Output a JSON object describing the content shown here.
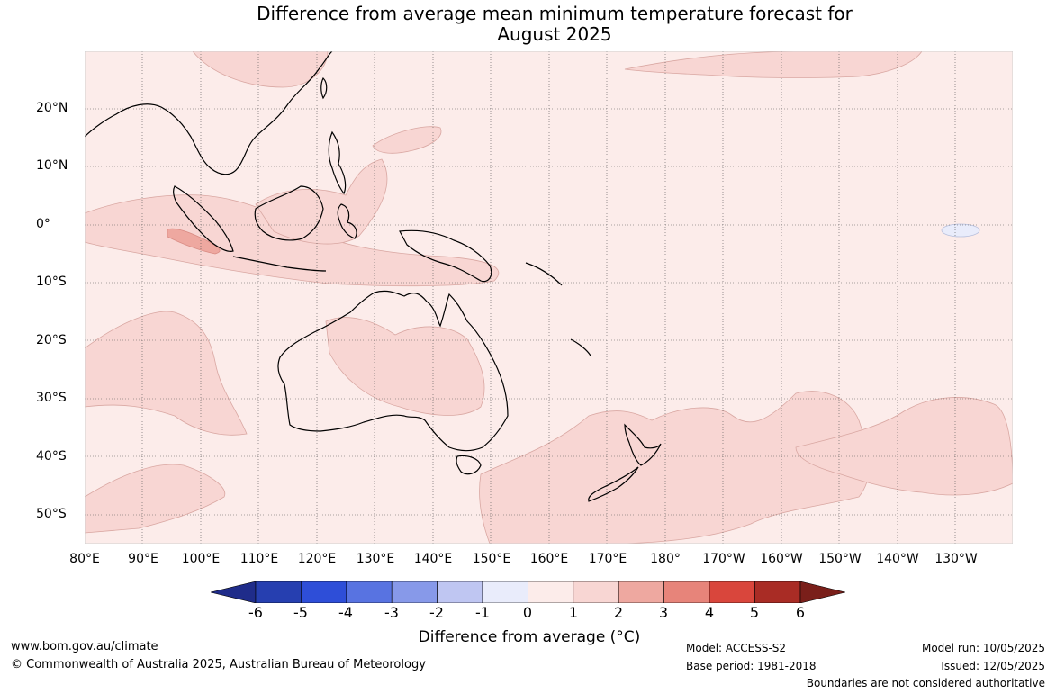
{
  "title": {
    "line1": "Difference from average mean minimum temperature forecast for",
    "line2": "August 2025"
  },
  "map": {
    "region": "Australia, Indian Ocean and Western Pacific",
    "lat_labels": [
      "20°N",
      "10°N",
      "0°",
      "10°S",
      "20°S",
      "30°S",
      "40°S",
      "50°S"
    ],
    "lon_labels": [
      "80°E",
      "90°E",
      "100°E",
      "110°E",
      "120°E",
      "130°E",
      "140°E",
      "150°E",
      "160°E",
      "170°E",
      "180°",
      "170°W",
      "160°W",
      "150°W",
      "140°W",
      "130°W"
    ],
    "background_category": "0 to 1",
    "anomaly_regions": [
      {
        "area": "Equatorial Indian Ocean / western Indonesia",
        "range": "1 to 2"
      },
      {
        "area": "Off western Sumatra",
        "range": "2 to 3"
      },
      {
        "area": "Central and eastern Australia",
        "range": "1 to 2"
      },
      {
        "area": "Southern Ocean south of Australia and around New Zealand",
        "range": "1 to 2"
      },
      {
        "area": "Eastern Pacific near 140°W-120°W, 30°S-45°S",
        "range": "1 to 2"
      },
      {
        "area": "Equatorial central Pacific near 135°W",
        "range": "-1 to 0"
      }
    ]
  },
  "colorbar": {
    "title": "Difference from average (°C)",
    "ticks": [
      "-6",
      "-5",
      "-4",
      "-3",
      "-2",
      "-1",
      "0",
      "1",
      "2",
      "3",
      "4",
      "5",
      "6"
    ],
    "colors": [
      "#1f2c8a",
      "#263fb0",
      "#2e4ed8",
      "#5873e1",
      "#8799e9",
      "#bfc6f2",
      "#e9ecfb",
      "#fcecea",
      "#f8d6d3",
      "#eea8a0",
      "#e7847a",
      "#d9463c",
      "#a92c25",
      "#7a1f1a"
    ]
  },
  "footer": {
    "website": "www.bom.gov.au/climate",
    "copyright": "© Commonwealth of Australia 2025, Australian Bureau of Meteorology",
    "model": "Model: ACCESS-S2",
    "base_period": "Base period: 1981-2018",
    "model_run": "Model run: 10/05/2025",
    "issued": "Issued: 12/05/2025",
    "disclaimer": "Boundaries are not considered authoritative"
  }
}
